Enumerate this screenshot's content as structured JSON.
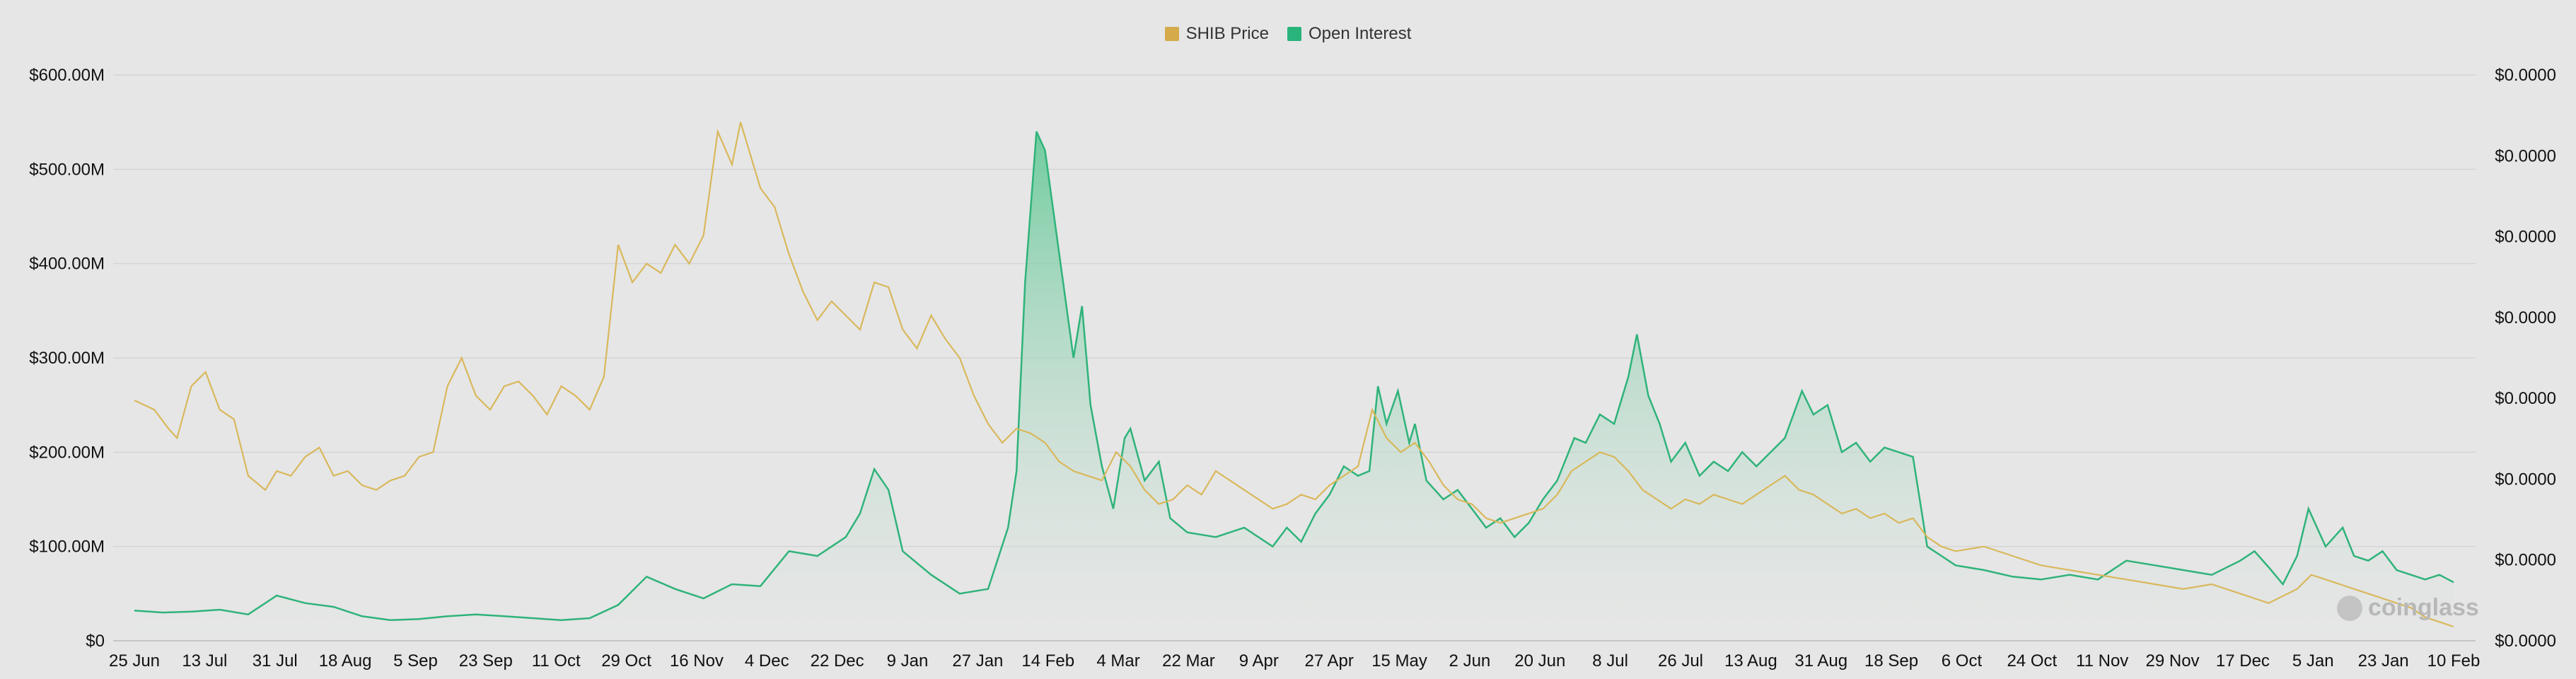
{
  "colors": {
    "price": "#d9b85c",
    "open_interest": "#2fb37a",
    "oi_fill_top": "#5cc792",
    "grid": "#d4d4d4",
    "background": "#e6e6e6"
  },
  "legend": [
    {
      "label": "SHIB Price",
      "color": "#d4aa4a"
    },
    {
      "label": "Open Interest",
      "color": "#29b47c"
    }
  ],
  "watermark": "coinglass",
  "chart_data": {
    "type": "area",
    "y_left_ticks": [
      "$0",
      "$100.00M",
      "$200.00M",
      "$300.00M",
      "$400.00M",
      "$500.00M",
      "$600.00M"
    ],
    "y_right_ticks": [
      "$0.0000",
      "$0.0000",
      "$0.0000",
      "$0.0000",
      "$0.0000",
      "$0.0000",
      "$0.0000",
      "$0.0000"
    ],
    "ylim_left": [
      0,
      600000000
    ],
    "x_ticks": [
      "25 Jun",
      "13 Jul",
      "31 Jul",
      "18 Aug",
      "5 Sep",
      "23 Sep",
      "11 Oct",
      "29 Oct",
      "16 Nov",
      "4 Dec",
      "22 Dec",
      "9 Jan",
      "27 Jan",
      "14 Feb",
      "4 Mar",
      "22 Mar",
      "9 Apr",
      "27 Apr",
      "15 May",
      "2 Jun",
      "20 Jun",
      "8 Jul",
      "26 Jul",
      "13 Aug",
      "31 Aug",
      "18 Sep",
      "6 Oct",
      "24 Oct",
      "11 Nov",
      "29 Nov",
      "17 Dec",
      "5 Jan",
      "23 Jan",
      "10 Feb"
    ],
    "grid": true,
    "legend_position": "top-center",
    "series": [
      {
        "name": "Open Interest",
        "axis": "left",
        "style": "area",
        "values": [
          [
            0,
            32
          ],
          [
            1,
            30
          ],
          [
            2,
            31
          ],
          [
            3,
            33
          ],
          [
            4,
            28
          ],
          [
            5,
            48
          ],
          [
            6,
            40
          ],
          [
            7,
            36
          ],
          [
            8,
            26
          ],
          [
            9,
            22
          ],
          [
            10,
            23
          ],
          [
            11,
            26
          ],
          [
            12,
            28
          ],
          [
            13,
            26
          ],
          [
            14,
            24
          ],
          [
            15,
            22
          ],
          [
            16,
            24
          ],
          [
            17,
            38
          ],
          [
            18,
            68
          ],
          [
            19,
            55
          ],
          [
            20,
            45
          ],
          [
            21,
            60
          ],
          [
            22,
            58
          ],
          [
            23,
            95
          ],
          [
            24,
            90
          ],
          [
            25,
            110
          ],
          [
            25.5,
            135
          ],
          [
            26,
            182
          ],
          [
            26.5,
            160
          ],
          [
            27,
            95
          ],
          [
            28,
            70
          ],
          [
            29,
            50
          ],
          [
            30,
            55
          ],
          [
            30.7,
            120
          ],
          [
            31,
            180
          ],
          [
            31.3,
            380
          ],
          [
            31.7,
            540
          ],
          [
            32,
            520
          ],
          [
            32.5,
            410
          ],
          [
            33,
            300
          ],
          [
            33.3,
            355
          ],
          [
            33.6,
            250
          ],
          [
            34,
            185
          ],
          [
            34.4,
            140
          ],
          [
            34.8,
            215
          ],
          [
            35,
            225
          ],
          [
            35.5,
            170
          ],
          [
            36,
            190
          ],
          [
            36.4,
            130
          ],
          [
            37,
            115
          ],
          [
            38,
            110
          ],
          [
            39,
            120
          ],
          [
            40,
            100
          ],
          [
            40.5,
            120
          ],
          [
            41,
            105
          ],
          [
            41.5,
            135
          ],
          [
            42,
            155
          ],
          [
            42.5,
            185
          ],
          [
            43,
            175
          ],
          [
            43.4,
            180
          ],
          [
            43.7,
            270
          ],
          [
            44,
            230
          ],
          [
            44.4,
            265
          ],
          [
            44.8,
            210
          ],
          [
            45,
            230
          ],
          [
            45.4,
            170
          ],
          [
            46,
            150
          ],
          [
            46.5,
            160
          ],
          [
            47,
            140
          ],
          [
            47.5,
            120
          ],
          [
            48,
            130
          ],
          [
            48.5,
            110
          ],
          [
            49,
            125
          ],
          [
            49.5,
            150
          ],
          [
            50,
            170
          ],
          [
            50.6,
            215
          ],
          [
            51,
            210
          ],
          [
            51.5,
            240
          ],
          [
            52,
            230
          ],
          [
            52.5,
            280
          ],
          [
            52.8,
            325
          ],
          [
            53.2,
            260
          ],
          [
            53.6,
            230
          ],
          [
            54,
            190
          ],
          [
            54.5,
            210
          ],
          [
            55,
            175
          ],
          [
            55.5,
            190
          ],
          [
            56,
            180
          ],
          [
            56.5,
            200
          ],
          [
            57,
            185
          ],
          [
            57.5,
            200
          ],
          [
            58,
            215
          ],
          [
            58.6,
            265
          ],
          [
            59,
            240
          ],
          [
            59.5,
            250
          ],
          [
            60,
            200
          ],
          [
            60.5,
            210
          ],
          [
            61,
            190
          ],
          [
            61.5,
            205
          ],
          [
            62,
            200
          ],
          [
            62.5,
            195
          ],
          [
            63,
            100
          ],
          [
            63.5,
            90
          ],
          [
            64,
            80
          ],
          [
            65,
            75
          ],
          [
            66,
            68
          ],
          [
            67,
            65
          ],
          [
            68,
            70
          ],
          [
            69,
            65
          ],
          [
            70,
            85
          ],
          [
            71,
            80
          ],
          [
            72,
            75
          ],
          [
            73,
            70
          ],
          [
            74,
            85
          ],
          [
            74.5,
            95
          ],
          [
            75,
            78
          ],
          [
            75.5,
            60
          ],
          [
            76,
            90
          ],
          [
            76.4,
            140
          ],
          [
            77,
            100
          ],
          [
            77.6,
            120
          ],
          [
            78,
            90
          ],
          [
            78.5,
            85
          ],
          [
            79,
            95
          ],
          [
            79.5,
            75
          ],
          [
            80,
            70
          ],
          [
            80.5,
            65
          ],
          [
            81,
            70
          ],
          [
            81.5,
            62
          ]
        ]
      },
      {
        "name": "SHIB Price",
        "axis": "right",
        "style": "line",
        "values": [
          [
            0,
            255
          ],
          [
            0.7,
            245
          ],
          [
            1.2,
            225
          ],
          [
            1.5,
            215
          ],
          [
            2,
            270
          ],
          [
            2.5,
            285
          ],
          [
            3,
            245
          ],
          [
            3.5,
            235
          ],
          [
            4,
            175
          ],
          [
            4.6,
            160
          ],
          [
            5,
            180
          ],
          [
            5.5,
            175
          ],
          [
            6,
            195
          ],
          [
            6.5,
            205
          ],
          [
            7,
            175
          ],
          [
            7.5,
            180
          ],
          [
            8,
            165
          ],
          [
            8.5,
            160
          ],
          [
            9,
            170
          ],
          [
            9.5,
            175
          ],
          [
            10,
            195
          ],
          [
            10.5,
            200
          ],
          [
            11,
            270
          ],
          [
            11.5,
            300
          ],
          [
            12,
            260
          ],
          [
            12.5,
            245
          ],
          [
            13,
            270
          ],
          [
            13.5,
            275
          ],
          [
            14,
            260
          ],
          [
            14.5,
            240
          ],
          [
            15,
            270
          ],
          [
            15.5,
            260
          ],
          [
            16,
            245
          ],
          [
            16.5,
            280
          ],
          [
            17,
            420
          ],
          [
            17.5,
            380
          ],
          [
            18,
            400
          ],
          [
            18.5,
            390
          ],
          [
            19,
            420
          ],
          [
            19.5,
            400
          ],
          [
            20,
            430
          ],
          [
            20.5,
            540
          ],
          [
            21,
            505
          ],
          [
            21.3,
            550
          ],
          [
            21.6,
            520
          ],
          [
            22,
            480
          ],
          [
            22.5,
            460
          ],
          [
            23,
            410
          ],
          [
            23.5,
            370
          ],
          [
            24,
            340
          ],
          [
            24.5,
            360
          ],
          [
            25,
            345
          ],
          [
            25.5,
            330
          ],
          [
            26,
            380
          ],
          [
            26.5,
            375
          ],
          [
            27,
            330
          ],
          [
            27.5,
            310
          ],
          [
            28,
            345
          ],
          [
            28.5,
            320
          ],
          [
            29,
            300
          ],
          [
            29.5,
            260
          ],
          [
            30,
            230
          ],
          [
            30.5,
            210
          ],
          [
            31,
            225
          ],
          [
            31.5,
            220
          ],
          [
            32,
            210
          ],
          [
            32.5,
            190
          ],
          [
            33,
            180
          ],
          [
            33.5,
            175
          ],
          [
            34,
            170
          ],
          [
            34.5,
            200
          ],
          [
            35,
            185
          ],
          [
            35.5,
            160
          ],
          [
            36,
            145
          ],
          [
            36.5,
            150
          ],
          [
            37,
            165
          ],
          [
            37.5,
            155
          ],
          [
            38,
            180
          ],
          [
            38.5,
            170
          ],
          [
            39,
            160
          ],
          [
            39.5,
            150
          ],
          [
            40,
            140
          ],
          [
            40.5,
            145
          ],
          [
            41,
            155
          ],
          [
            41.5,
            150
          ],
          [
            42,
            165
          ],
          [
            42.5,
            175
          ],
          [
            43,
            185
          ],
          [
            43.5,
            245
          ],
          [
            44,
            215
          ],
          [
            44.5,
            200
          ],
          [
            45,
            210
          ],
          [
            45.5,
            190
          ],
          [
            46,
            165
          ],
          [
            46.5,
            150
          ],
          [
            47,
            145
          ],
          [
            47.5,
            130
          ],
          [
            48,
            125
          ],
          [
            48.5,
            130
          ],
          [
            49,
            135
          ],
          [
            49.5,
            140
          ],
          [
            50,
            155
          ],
          [
            50.5,
            180
          ],
          [
            51,
            190
          ],
          [
            51.5,
            200
          ],
          [
            52,
            195
          ],
          [
            52.5,
            180
          ],
          [
            53,
            160
          ],
          [
            53.5,
            150
          ],
          [
            54,
            140
          ],
          [
            54.5,
            150
          ],
          [
            55,
            145
          ],
          [
            55.5,
            155
          ],
          [
            56,
            150
          ],
          [
            56.5,
            145
          ],
          [
            57,
            155
          ],
          [
            57.5,
            165
          ],
          [
            58,
            175
          ],
          [
            58.5,
            160
          ],
          [
            59,
            155
          ],
          [
            59.5,
            145
          ],
          [
            60,
            135
          ],
          [
            60.5,
            140
          ],
          [
            61,
            130
          ],
          [
            61.5,
            135
          ],
          [
            62,
            125
          ],
          [
            62.5,
            130
          ],
          [
            63,
            110
          ],
          [
            63.5,
            100
          ],
          [
            64,
            95
          ],
          [
            65,
            100
          ],
          [
            66,
            90
          ],
          [
            67,
            80
          ],
          [
            68,
            75
          ],
          [
            69,
            70
          ],
          [
            70,
            65
          ],
          [
            71,
            60
          ],
          [
            72,
            55
          ],
          [
            73,
            60
          ],
          [
            74,
            50
          ],
          [
            74.5,
            45
          ],
          [
            75,
            40
          ],
          [
            76,
            55
          ],
          [
            76.5,
            70
          ],
          [
            77,
            65
          ],
          [
            77.5,
            60
          ],
          [
            78,
            55
          ],
          [
            78.5,
            50
          ],
          [
            79,
            45
          ],
          [
            79.5,
            40
          ],
          [
            80,
            35
          ],
          [
            80.5,
            25
          ],
          [
            81,
            20
          ],
          [
            81.5,
            15
          ]
        ]
      }
    ]
  }
}
